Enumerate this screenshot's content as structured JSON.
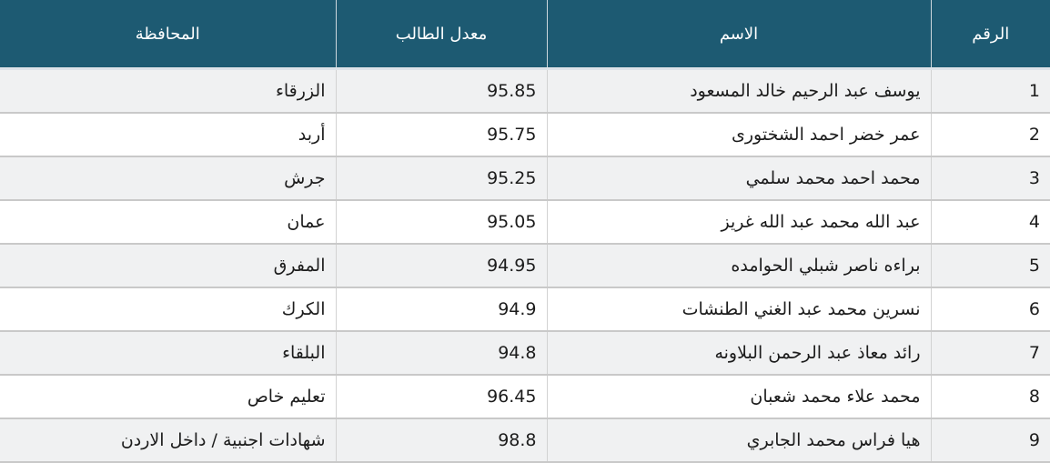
{
  "table": {
    "headers": {
      "num": "الرقم",
      "name": "الاسم",
      "avg": "معدل الطالب",
      "gov": "المحافظة"
    },
    "rows": [
      {
        "num": "1",
        "name": "يوسف عبد الرحيم خالد المسعود",
        "avg": "95.85",
        "gov": "الزرقاء"
      },
      {
        "num": "2",
        "name": "عمر خضر احمد الشختورى",
        "avg": "95.75",
        "gov": "أربد"
      },
      {
        "num": "3",
        "name": "محمد احمد محمد سلمي",
        "avg": "95.25",
        "gov": "جرش"
      },
      {
        "num": "4",
        "name": "عبد الله محمد عبد الله غريز",
        "avg": "95.05",
        "gov": "عمان"
      },
      {
        "num": "5",
        "name": "براءه ناصر شبلي الحوامده",
        "avg": "94.95",
        "gov": "المفرق"
      },
      {
        "num": "6",
        "name": "نسرين محمد عبد الغني الطنشات",
        "avg": "94.9",
        "gov": "الكرك"
      },
      {
        "num": "7",
        "name": "رائد معاذ عبد الرحمن البلاونه",
        "avg": "94.8",
        "gov": "البلقاء"
      },
      {
        "num": "8",
        "name": "محمد علاء محمد شعبان",
        "avg": "96.45",
        "gov": "تعليم خاص"
      },
      {
        "num": "9",
        "name": "هيا فراس محمد الجابري",
        "avg": "98.8",
        "gov": "شهادات اجنبية / داخل الاردن"
      }
    ]
  },
  "colors": {
    "header_bg": "#1d5a72",
    "header_text": "#ffffff",
    "header_gap": "#dde3e9",
    "row_alt_bg": "#f0f1f2",
    "row_bg": "#ffffff",
    "row_separator": "#c9c9c9",
    "column_border": "#d2d2d2",
    "body_text": "#1c1c1c"
  }
}
